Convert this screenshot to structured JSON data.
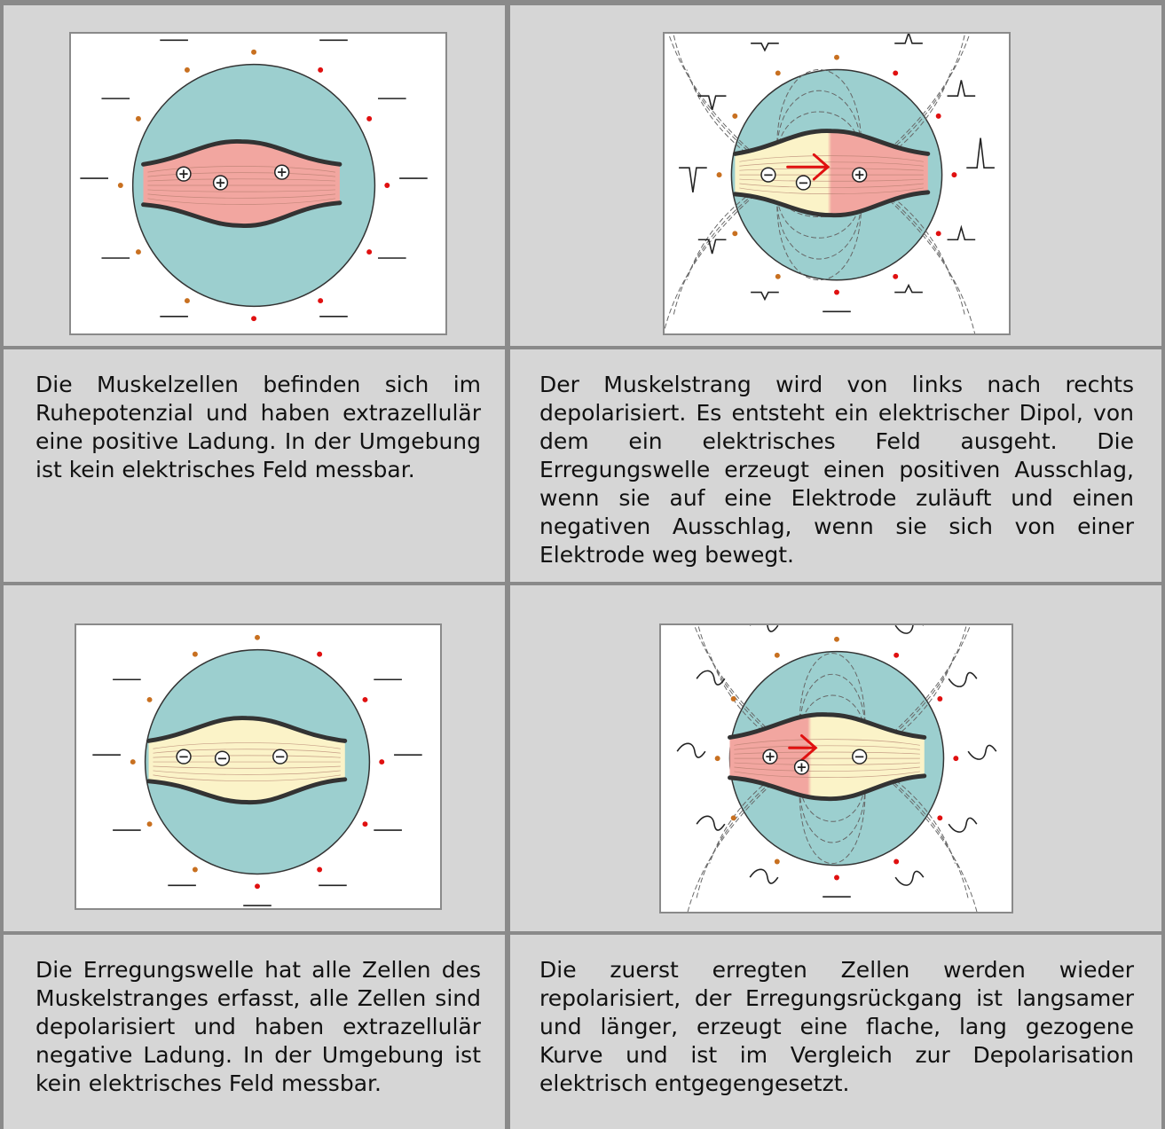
{
  "panels": [
    {
      "id": "resting",
      "caption": "Die Muskelzellen befinden sich im Ruhepotenzial und haben extrazellulär eine positive Ladung. In der Umgebung ist kein elektrisches Feld messbar.",
      "charges": [
        "+",
        "+",
        "+"
      ],
      "fiber_color": "#f2a6a0"
    },
    {
      "id": "depolarizing",
      "caption": "Der Muskelstrang wird von links nach rechts depolarisiert. Es entsteht ein elektrischer Dipol, von dem ein elektrisches Feld ausgeht. Die Erregungswelle erzeugt einen positiven Ausschlag, wenn sie auf eine Elektrode zuläuft und einen negativen Ausschlag, wenn sie sich von einer Elektrode weg bewegt.",
      "charges": [
        "−",
        "−",
        "+"
      ],
      "arrow_color": "#e01010"
    },
    {
      "id": "fully-depolarized",
      "caption": "Die Erregungswelle hat alle Zellen des Muskelstranges erfasst, alle Zellen sind depolarisiert und haben extrazellulär negative Ladung. In der Umgebung ist kein elektrisches Feld messbar.",
      "charges": [
        "−",
        "−",
        "−"
      ],
      "fiber_color": "#fbf3c8"
    },
    {
      "id": "repolarizing",
      "caption": "Die zuerst erregten Zellen werden wieder repolarisiert, der Erregungsrückgang ist langsamer und länger, erzeugt eine flache, lang gezogene Kurve und ist im Vergleich zur Depolarisation elektrisch entgegengesetzt.",
      "charges": [
        "+",
        "+",
        "−"
      ],
      "arrow_color": "#e01010"
    }
  ],
  "colors": {
    "field": "#9ccfcf",
    "electrode_left": "#c87020",
    "electrode_right": "#e01010"
  }
}
